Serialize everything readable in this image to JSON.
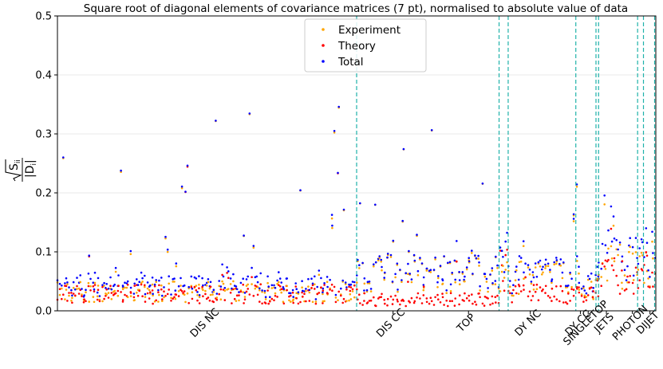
{
  "chart_data": {
    "type": "scatter",
    "title": "Square root of diagonal elements of covariance matrices (7 pt), normalised to absolute value of data",
    "ylabel": {
      "radical_arg": "S",
      "sub_ii": "ii",
      "denom": "D",
      "sub_i": "i"
    },
    "xlabel": "",
    "ylim": [
      0,
      0.5
    ],
    "xlim": [
      0,
      4600
    ],
    "y_ticks": [
      "0.0",
      "0.1",
      "0.2",
      "0.3",
      "0.4",
      "0.5"
    ],
    "y_tick_values": [
      0,
      0.1,
      0.2,
      0.3,
      0.4,
      0.5
    ],
    "grid": true,
    "legend_position": "top-center",
    "colors": {
      "experiment": "#ffa500",
      "theory": "#ff0000",
      "total": "#0000ff",
      "separator": "#20b2aa"
    },
    "series": [
      {
        "name": "Experiment",
        "color": "#ffa500"
      },
      {
        "name": "Theory",
        "color": "#ff0000"
      },
      {
        "name": "Total",
        "color": "#0000ff"
      }
    ],
    "segments": [
      {
        "label": "DIS NC",
        "start": 0,
        "end": 2300
      },
      {
        "label": "DIS CC",
        "start": 2300,
        "end": 3395
      },
      {
        "label": "TOP",
        "start": 3395,
        "end": 3465
      },
      {
        "label": "DY NC",
        "start": 3465,
        "end": 3985
      },
      {
        "label": "DY CC",
        "start": 3985,
        "end": 4140
      },
      {
        "label": "SINGLETOP",
        "start": 4140,
        "end": 4160
      },
      {
        "label": "JETS",
        "start": 4160,
        "end": 4460
      },
      {
        "label": "PHOTON",
        "start": 4460,
        "end": 4505
      },
      {
        "label": "DIJET",
        "start": 4505,
        "end": 4600
      }
    ],
    "boundaries": [
      2300,
      3395,
      3465,
      3985,
      4140,
      4160,
      4460,
      4505,
      4600
    ]
  }
}
